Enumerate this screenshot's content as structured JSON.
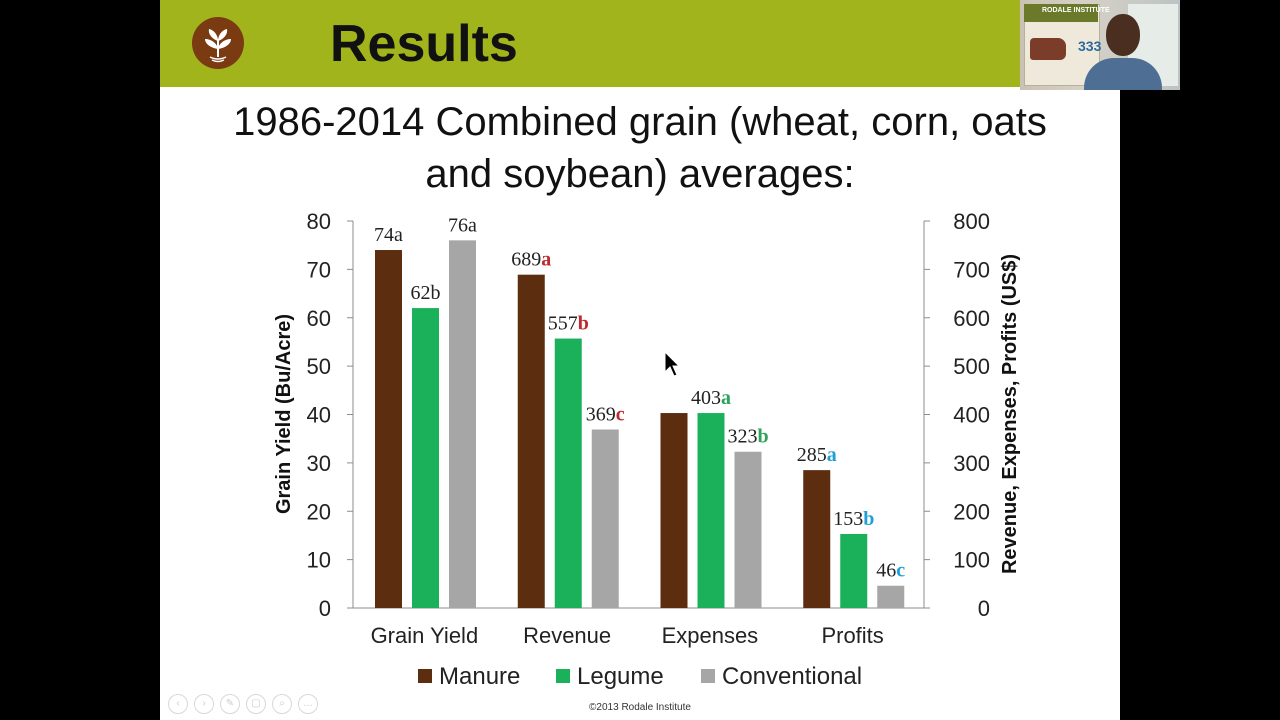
{
  "slide": {
    "title": "Results",
    "subtitle_line1": "1986-2014 Combined grain (wheat, corn, oats",
    "subtitle_line2": "and soybean) averages:",
    "footer": "©2013 Rodale Institute"
  },
  "webcam": {
    "poster_brand": "RODALE INSTITUTE",
    "poster_number": "333"
  },
  "colors": {
    "banner": "#a2b41c",
    "manure": "#5c2d0e",
    "legume": "#1bb15a",
    "conventional": "#a6a6a6",
    "letter_red": "#c0282d",
    "letter_green": "#2ba35a",
    "letter_blue": "#1f9fd6"
  },
  "chart_data": {
    "type": "bar",
    "categories": [
      "Grain Yield",
      "Revenue",
      "Expenses",
      "Profits"
    ],
    "axes": {
      "left": {
        "label": "Grain Yield (Bu/Acre)",
        "min": 0,
        "max": 80,
        "ticks": [
          "0",
          "10",
          "20",
          "30",
          "40",
          "50",
          "60",
          "70",
          "80"
        ]
      },
      "right": {
        "label": "Revenue, Expenses, Profits (US$)",
        "min": 0,
        "max": 800,
        "ticks": [
          "0",
          "100",
          "200",
          "300",
          "400",
          "500",
          "600",
          "700",
          "800"
        ]
      }
    },
    "series": [
      {
        "name": "Manure",
        "values": [
          74,
          689,
          403,
          285
        ]
      },
      {
        "name": "Legume",
        "values": [
          62,
          557,
          403,
          153
        ]
      },
      {
        "name": "Conventional",
        "values": [
          76,
          369,
          323,
          46
        ]
      }
    ],
    "bar_labels": [
      [
        {
          "num": "74",
          "letter": "a",
          "color": "plain"
        },
        {
          "num": "62",
          "letter": "b",
          "color": "plain"
        },
        {
          "num": "76",
          "letter": "a",
          "color": "plain"
        }
      ],
      [
        {
          "num": "689",
          "letter": "a",
          "color": "red"
        },
        {
          "num": "557",
          "letter": "b",
          "color": "red"
        },
        {
          "num": "369",
          "letter": "c",
          "color": "red"
        }
      ],
      [
        {
          "num": "",
          "letter": "",
          "color": "green"
        },
        {
          "num": "403",
          "letter": "a",
          "color": "green"
        },
        {
          "num": "323",
          "letter": "b",
          "color": "green"
        }
      ],
      [
        {
          "num": "285",
          "letter": "a",
          "color": "blue"
        },
        {
          "num": "153",
          "letter": "b",
          "color": "blue"
        },
        {
          "num": "46",
          "letter": "c",
          "color": "blue"
        }
      ]
    ],
    "legend": [
      "Manure",
      "Legume",
      "Conventional"
    ],
    "legend_position": "bottom",
    "grid": false
  }
}
